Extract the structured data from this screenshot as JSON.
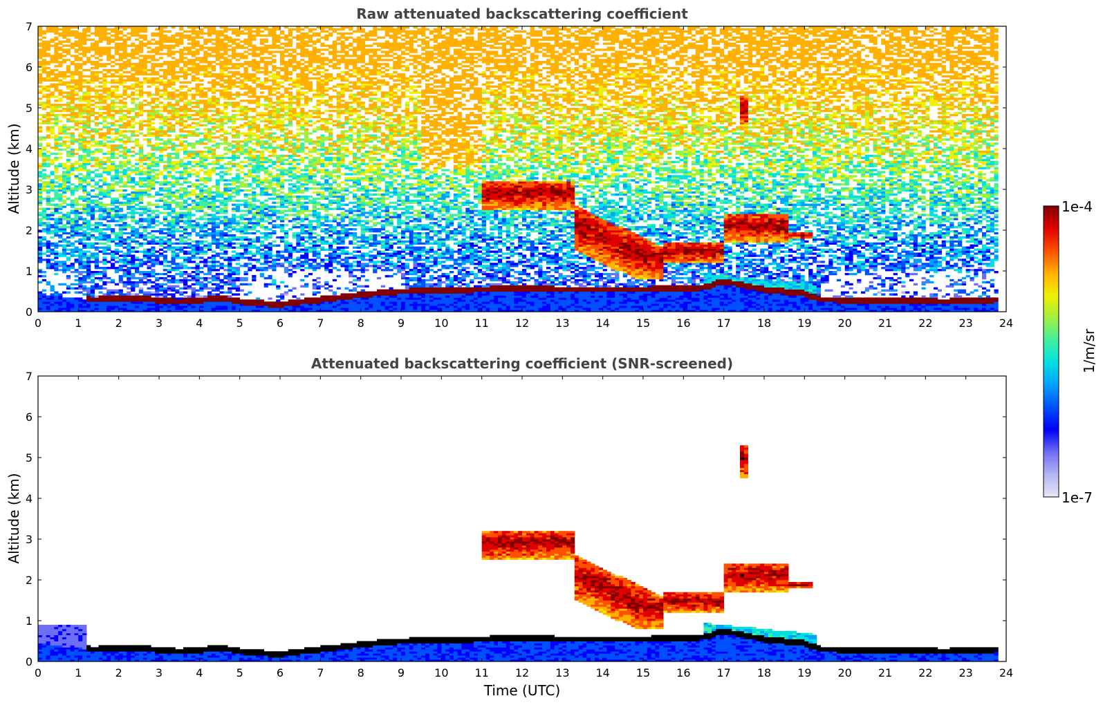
{
  "chart_data": [
    {
      "type": "heatmap",
      "title": "Raw attenuated backscattering coefficient",
      "xlabel": "",
      "ylabel": "Altitude (km)",
      "xlim": [
        0,
        24
      ],
      "ylim": [
        0,
        7
      ],
      "x_ticks": [
        0,
        1,
        2,
        3,
        4,
        5,
        6,
        7,
        8,
        9,
        10,
        11,
        12,
        13,
        14,
        15,
        16,
        17,
        18,
        19,
        20,
        21,
        22,
        23,
        24
      ],
      "y_ticks": [
        0,
        1,
        2,
        3,
        4,
        5,
        6,
        7
      ],
      "screening": "raw",
      "boundary_layer_top_km": [
        {
          "t": 0.0,
          "h": 0.45
        },
        {
          "t": 1.3,
          "h": 0.3
        },
        {
          "t": 2.5,
          "h": 0.33
        },
        {
          "t": 3.5,
          "h": 0.25
        },
        {
          "t": 4.5,
          "h": 0.33
        },
        {
          "t": 5.3,
          "h": 0.22
        },
        {
          "t": 6.0,
          "h": 0.18
        },
        {
          "t": 7.0,
          "h": 0.3
        },
        {
          "t": 8.0,
          "h": 0.42
        },
        {
          "t": 9.0,
          "h": 0.5
        },
        {
          "t": 10.0,
          "h": 0.52
        },
        {
          "t": 11.0,
          "h": 0.55
        },
        {
          "t": 12.0,
          "h": 0.58
        },
        {
          "t": 13.0,
          "h": 0.55
        },
        {
          "t": 15.0,
          "h": 0.55
        },
        {
          "t": 16.5,
          "h": 0.6
        },
        {
          "t": 17.0,
          "h": 0.75
        },
        {
          "t": 18.0,
          "h": 0.55
        },
        {
          "t": 19.0,
          "h": 0.45
        },
        {
          "t": 19.4,
          "h": 0.3
        },
        {
          "t": 21.0,
          "h": 0.28
        },
        {
          "t": 22.5,
          "h": 0.25
        },
        {
          "t": 23.8,
          "h": 0.3
        }
      ],
      "cloud_layers": [
        {
          "t_start": 11.0,
          "t_end": 13.3,
          "base_km": 2.5,
          "top_km": 3.2
        },
        {
          "t_start": 13.3,
          "t_end": 15.5,
          "base_km": 0.8,
          "top_km": 2.6
        },
        {
          "t_start": 15.5,
          "t_end": 17.0,
          "base_km": 1.2,
          "top_km": 1.7
        },
        {
          "t_start": 17.0,
          "t_end": 18.6,
          "base_km": 1.7,
          "top_km": 2.4
        },
        {
          "t_start": 18.6,
          "t_end": 19.2,
          "base_km": 1.8,
          "top_km": 1.95
        },
        {
          "t_start": 17.45,
          "t_end": 17.6,
          "base_km": 4.5,
          "top_km": 5.3
        }
      ]
    },
    {
      "type": "heatmap",
      "title": "Attenuated backscattering coefficient (SNR-screened)",
      "xlabel": "Time (UTC)",
      "ylabel": "Altitude (km)",
      "xlim": [
        0,
        24
      ],
      "ylim": [
        0,
        7
      ],
      "x_ticks": [
        0,
        1,
        2,
        3,
        4,
        5,
        6,
        7,
        8,
        9,
        10,
        11,
        12,
        13,
        14,
        15,
        16,
        17,
        18,
        19,
        20,
        21,
        22,
        23,
        24
      ],
      "y_ticks": [
        0,
        1,
        2,
        3,
        4,
        5,
        6,
        7
      ],
      "screening": "snr"
    }
  ],
  "colorbar": {
    "label": "1/m/sr",
    "max_label": "1e-4",
    "min_label": "1e-7",
    "scale": "log",
    "range": [
      1e-07,
      0.0001
    ],
    "colors": [
      "#e6e6f8",
      "#b4b4f0",
      "#6e6ef5",
      "#0000ff",
      "#0050ff",
      "#00a0ff",
      "#00e0e0",
      "#40f0a0",
      "#a0f040",
      "#f0f000",
      "#ffb000",
      "#ff5000",
      "#e00000",
      "#800000"
    ]
  }
}
